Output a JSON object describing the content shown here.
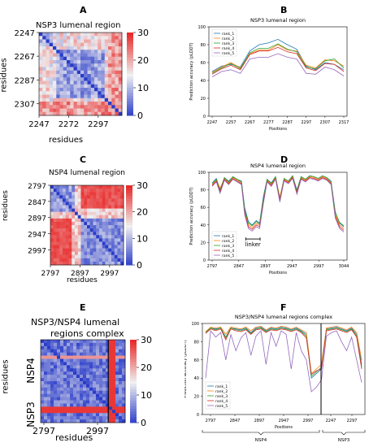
{
  "panel_letters": [
    "A",
    "B",
    "C",
    "D",
    "E",
    "F"
  ],
  "colors": {
    "rank_1": "#1f77b4",
    "rank_2": "#ff7f0e",
    "rank_3": "#2ca02c",
    "rank_4": "#d62728",
    "rank_5": "#9467bd",
    "heatmap_low": "#2a3cc8",
    "heatmap_mid": "#f0f0f0",
    "heatmap_high": "#e82a2a"
  },
  "chart_data": [
    {
      "panel": "A",
      "type": "heatmap",
      "title": "NSP3 lumenal region",
      "xlabel": "residues",
      "ylabel": "residues",
      "x_ticks": [
        "2247",
        "2272",
        "2297"
      ],
      "y_ticks": [
        "2247",
        "2267",
        "2287",
        "2307"
      ],
      "colorbar_ticks": [
        "30",
        "20",
        "10",
        "0"
      ],
      "colorbar_range": [
        0,
        30
      ]
    },
    {
      "panel": "B",
      "type": "line",
      "title": "NSP3 lumenal region",
      "xlabel": "Positions",
      "ylabel": "Prediction accuracy (pLDDT)",
      "x_ticks": [
        "2247",
        "2257",
        "2267",
        "2277",
        "2287",
        "2297",
        "2307",
        "2317"
      ],
      "y_ticks": [
        "100",
        "80",
        "60",
        "40",
        "20",
        "0"
      ],
      "xlim": [
        2247,
        2317
      ],
      "ylim": [
        0,
        100
      ],
      "legend_position": "top-left",
      "series": [
        {
          "name": "rank_1",
          "x": [
            2247,
            2252,
            2257,
            2262,
            2267,
            2272,
            2277,
            2282,
            2287,
            2292,
            2297,
            2302,
            2307,
            2312,
            2317
          ],
          "values": [
            50,
            56,
            58,
            55,
            73,
            80,
            82,
            86,
            80,
            75,
            56,
            52,
            60,
            58,
            52
          ]
        },
        {
          "name": "rank_2",
          "x": [
            2247,
            2252,
            2257,
            2262,
            2267,
            2272,
            2277,
            2282,
            2287,
            2292,
            2297,
            2302,
            2307,
            2312,
            2317
          ],
          "values": [
            49,
            55,
            60,
            54,
            70,
            74,
            74,
            80,
            74,
            73,
            57,
            54,
            63,
            62,
            56
          ]
        },
        {
          "name": "rank_3",
          "x": [
            2247,
            2252,
            2257,
            2262,
            2267,
            2272,
            2277,
            2282,
            2287,
            2292,
            2297,
            2302,
            2307,
            2312,
            2317
          ],
          "values": [
            48,
            54,
            59,
            53,
            71,
            76,
            76,
            81,
            75,
            72,
            55,
            53,
            62,
            64,
            54
          ]
        },
        {
          "name": "rank_4",
          "x": [
            2247,
            2252,
            2257,
            2262,
            2267,
            2272,
            2277,
            2282,
            2287,
            2292,
            2297,
            2302,
            2307,
            2312,
            2317
          ],
          "values": [
            47,
            53,
            57,
            52,
            69,
            73,
            73,
            77,
            72,
            70,
            54,
            51,
            59,
            58,
            50
          ]
        },
        {
          "name": "rank_5",
          "x": [
            2247,
            2252,
            2257,
            2262,
            2267,
            2272,
            2277,
            2282,
            2287,
            2292,
            2297,
            2302,
            2307,
            2312,
            2317
          ],
          "values": [
            44,
            50,
            52,
            48,
            64,
            66,
            66,
            70,
            66,
            64,
            48,
            47,
            55,
            52,
            45
          ]
        }
      ]
    },
    {
      "panel": "C",
      "type": "heatmap",
      "title": "NSP4 lumenal region",
      "xlabel": "residues",
      "ylabel": "residues",
      "x_ticks": [
        "2797",
        "2897",
        "2997"
      ],
      "y_ticks": [
        "2797",
        "2847",
        "2897",
        "2947",
        "2997"
      ],
      "colorbar_ticks": [
        "30",
        "20",
        "10",
        "0"
      ],
      "colorbar_range": [
        0,
        30
      ]
    },
    {
      "panel": "D",
      "type": "line",
      "title": "NSP4 lumenal region",
      "xlabel": "Positions",
      "ylabel": "Prediction accuracy (pLDDT)",
      "x_ticks": [
        "2797",
        "2847",
        "2897",
        "2947",
        "2997",
        "3044"
      ],
      "y_ticks": [
        "100",
        "80",
        "60",
        "40",
        "20",
        "0"
      ],
      "xlim": [
        2797,
        3044
      ],
      "ylim": [
        0,
        100
      ],
      "legend_position": "bottom-left",
      "annotation": "linker",
      "annotation_range": [
        2860,
        2887
      ],
      "series": [
        {
          "name": "rank_1",
          "x": [
            2797,
            2805,
            2812,
            2820,
            2828,
            2836,
            2844,
            2852,
            2858,
            2865,
            2872,
            2880,
            2886,
            2893,
            2900,
            2908,
            2916,
            2924,
            2932,
            2940,
            2948,
            2956,
            2964,
            2972,
            2980,
            2988,
            2996,
            3004,
            3012,
            3020,
            3028,
            3036,
            3044
          ],
          "values": [
            88,
            93,
            80,
            94,
            90,
            95,
            92,
            90,
            60,
            44,
            40,
            45,
            42,
            72,
            92,
            88,
            95,
            70,
            93,
            90,
            96,
            80,
            95,
            92,
            96,
            95,
            93,
            96,
            94,
            90,
            55,
            42,
            38
          ]
        },
        {
          "name": "rank_2",
          "x": [
            2797,
            2805,
            2812,
            2820,
            2828,
            2836,
            2844,
            2852,
            2858,
            2865,
            2872,
            2880,
            2886,
            2893,
            2900,
            2908,
            2916,
            2924,
            2932,
            2940,
            2948,
            2956,
            2964,
            2972,
            2980,
            2988,
            2996,
            3004,
            3012,
            3020,
            3028,
            3036,
            3044
          ],
          "values": [
            86,
            91,
            82,
            93,
            88,
            94,
            91,
            88,
            56,
            40,
            37,
            42,
            40,
            68,
            91,
            86,
            94,
            72,
            92,
            89,
            95,
            78,
            94,
            91,
            95,
            94,
            92,
            95,
            93,
            88,
            52,
            40,
            36
          ]
        },
        {
          "name": "rank_3",
          "x": [
            2797,
            2805,
            2812,
            2820,
            2828,
            2836,
            2844,
            2852,
            2858,
            2865,
            2872,
            2880,
            2886,
            2893,
            2900,
            2908,
            2916,
            2924,
            2932,
            2940,
            2948,
            2956,
            2964,
            2972,
            2980,
            2988,
            2996,
            3004,
            3012,
            3020,
            3028,
            3036,
            3044
          ],
          "values": [
            87,
            92,
            79,
            94,
            89,
            95,
            92,
            89,
            58,
            42,
            39,
            44,
            41,
            70,
            92,
            87,
            95,
            69,
            93,
            90,
            96,
            79,
            95,
            92,
            96,
            95,
            93,
            96,
            94,
            89,
            54,
            43,
            39
          ]
        },
        {
          "name": "rank_4",
          "x": [
            2797,
            2805,
            2812,
            2820,
            2828,
            2836,
            2844,
            2852,
            2858,
            2865,
            2872,
            2880,
            2886,
            2893,
            2900,
            2908,
            2916,
            2924,
            2932,
            2940,
            2948,
            2956,
            2964,
            2972,
            2980,
            2988,
            2996,
            3004,
            3012,
            3020,
            3028,
            3036,
            3044
          ],
          "values": [
            85,
            90,
            78,
            92,
            87,
            93,
            90,
            87,
            54,
            38,
            35,
            40,
            38,
            66,
            90,
            85,
            93,
            68,
            91,
            88,
            94,
            77,
            93,
            90,
            94,
            93,
            91,
            94,
            92,
            87,
            50,
            38,
            34
          ]
        },
        {
          "name": "rank_5",
          "x": [
            2797,
            2805,
            2812,
            2820,
            2828,
            2836,
            2844,
            2852,
            2858,
            2865,
            2872,
            2880,
            2886,
            2893,
            2900,
            2908,
            2916,
            2924,
            2932,
            2940,
            2948,
            2956,
            2964,
            2972,
            2980,
            2988,
            2996,
            3004,
            3012,
            3020,
            3028,
            3036,
            3044
          ],
          "values": [
            84,
            89,
            76,
            91,
            86,
            92,
            89,
            86,
            52,
            36,
            33,
            38,
            36,
            64,
            89,
            84,
            92,
            66,
            90,
            87,
            93,
            75,
            92,
            89,
            93,
            92,
            90,
            93,
            91,
            86,
            48,
            36,
            32
          ]
        }
      ]
    },
    {
      "panel": "E",
      "type": "heatmap",
      "title_lines": [
        "NSP3/NSP4 lumenal",
        "regions complex"
      ],
      "xlabel": "residues",
      "ylabel": "residues",
      "x_ticks": [
        "2797",
        "2997"
      ],
      "y_group_labels": [
        "NSP4",
        "NSP3"
      ],
      "colorbar_ticks": [
        "30",
        "20",
        "10",
        "0"
      ],
      "colorbar_range": [
        0,
        30
      ]
    },
    {
      "panel": "F",
      "type": "line",
      "title": "NSP3/NSP4 lumenal regions complex",
      "xlabel": "Positions",
      "ylabel": "Prediction accuracy (pLDDT)",
      "x_ticks": [
        "2797",
        "2847",
        "2897",
        "2947",
        "2997",
        "2247",
        "2297"
      ],
      "y_ticks": [
        "100",
        "80",
        "60",
        "40",
        "20",
        "0"
      ],
      "ylim": [
        0,
        100
      ],
      "legend_position": "bottom-left",
      "group_labels": [
        "NSP4",
        "NSP3"
      ],
      "series": [
        {
          "name": "rank_1",
          "values": [
            90,
            95,
            94,
            95,
            85,
            95,
            94,
            93,
            95,
            90,
            95,
            96,
            92,
            95,
            94,
            96,
            95,
            93,
            95,
            92,
            88,
            40,
            45,
            50,
            94,
            95,
            96,
            94,
            92,
            95,
            88,
            55
          ]
        },
        {
          "name": "rank_2",
          "values": [
            91,
            96,
            95,
            96,
            88,
            96,
            95,
            94,
            96,
            92,
            96,
            97,
            93,
            96,
            95,
            97,
            96,
            94,
            96,
            93,
            90,
            45,
            50,
            55,
            95,
            96,
            97,
            95,
            93,
            96,
            90,
            60
          ]
        },
        {
          "name": "rank_3",
          "values": [
            90,
            95,
            93,
            95,
            84,
            95,
            93,
            92,
            94,
            89,
            94,
            95,
            91,
            94,
            93,
            95,
            94,
            92,
            94,
            91,
            86,
            42,
            47,
            52,
            93,
            94,
            95,
            93,
            91,
            94,
            86,
            52
          ]
        },
        {
          "name": "rank_4",
          "values": [
            89,
            94,
            92,
            94,
            82,
            94,
            92,
            91,
            93,
            88,
            93,
            94,
            90,
            93,
            92,
            94,
            93,
            91,
            93,
            90,
            84,
            44,
            48,
            50,
            92,
            93,
            94,
            92,
            90,
            93,
            85,
            50
          ]
        },
        {
          "name": "rank_5",
          "values": [
            40,
            92,
            85,
            90,
            60,
            88,
            70,
            84,
            90,
            65,
            86,
            92,
            55,
            90,
            75,
            92,
            88,
            50,
            90,
            70,
            60,
            25,
            30,
            38,
            86,
            90,
            92,
            80,
            70,
            85,
            60,
            35
          ]
        }
      ]
    }
  ]
}
